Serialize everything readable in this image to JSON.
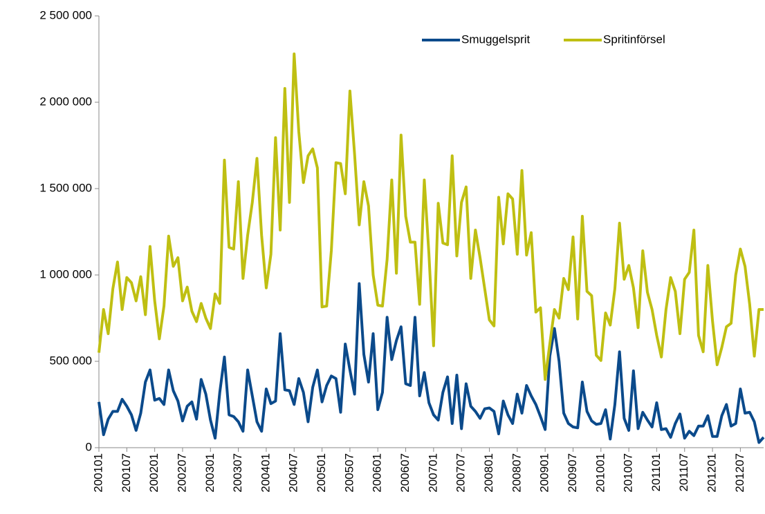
{
  "chart_data": {
    "type": "line",
    "categories": [
      "200101",
      null,
      null,
      null,
      null,
      null,
      "200107",
      null,
      null,
      null,
      null,
      null,
      "200201",
      null,
      null,
      null,
      null,
      null,
      "200207",
      null,
      null,
      null,
      null,
      null,
      "200301",
      null,
      null,
      null,
      null,
      null,
      "200307",
      null,
      null,
      null,
      null,
      null,
      "200401",
      null,
      null,
      null,
      null,
      null,
      "200407",
      null,
      null,
      null,
      null,
      null,
      "200501",
      null,
      null,
      null,
      null,
      null,
      "200507",
      null,
      null,
      null,
      null,
      null,
      "200601",
      null,
      null,
      null,
      null,
      null,
      "200607",
      null,
      null,
      null,
      null,
      null,
      "200701",
      null,
      null,
      null,
      null,
      null,
      "200707",
      null,
      null,
      null,
      null,
      null,
      "200801",
      null,
      null,
      null,
      null,
      null,
      "200807",
      null,
      null,
      null,
      null,
      null,
      "200901",
      null,
      null,
      null,
      null,
      null,
      "200907",
      null,
      null,
      null,
      null,
      null,
      "201001",
      null,
      null,
      null,
      null,
      null,
      "201007",
      null,
      null,
      null,
      null,
      null,
      "201101",
      null,
      null,
      null,
      null,
      null,
      "201107",
      null,
      null,
      null,
      null,
      null,
      "201201",
      null,
      null,
      null,
      null,
      null,
      "201207",
      null,
      null,
      null,
      null,
      null
    ],
    "series": [
      {
        "name": "Smuggelsprit",
        "color": "#0b4a8b",
        "values": [
          265000,
          75000,
          165000,
          210000,
          210000,
          280000,
          240000,
          190000,
          100000,
          200000,
          380000,
          450000,
          275000,
          285000,
          250000,
          450000,
          330000,
          270000,
          155000,
          240000,
          265000,
          165000,
          395000,
          310000,
          160000,
          55000,
          320000,
          525000,
          190000,
          180000,
          150000,
          95000,
          450000,
          300000,
          150000,
          95000,
          340000,
          255000,
          270000,
          660000,
          335000,
          330000,
          250000,
          400000,
          320000,
          150000,
          350000,
          450000,
          265000,
          360000,
          415000,
          400000,
          205000,
          600000,
          450000,
          310000,
          950000,
          540000,
          380000,
          660000,
          220000,
          320000,
          755000,
          510000,
          620000,
          700000,
          370000,
          360000,
          755000,
          300000,
          435000,
          260000,
          190000,
          160000,
          320000,
          410000,
          140000,
          420000,
          110000,
          370000,
          240000,
          210000,
          170000,
          225000,
          230000,
          210000,
          80000,
          270000,
          190000,
          140000,
          310000,
          200000,
          360000,
          300000,
          250000,
          180000,
          105000,
          530000,
          690000,
          500000,
          200000,
          140000,
          120000,
          115000,
          380000,
          210000,
          155000,
          135000,
          140000,
          220000,
          50000,
          250000,
          555000,
          170000,
          100000,
          445000,
          110000,
          205000,
          160000,
          120000,
          260000,
          105000,
          110000,
          60000,
          140000,
          195000,
          55000,
          95000,
          70000,
          125000,
          125000,
          185000,
          65000,
          65000,
          185000,
          250000,
          125000,
          140000,
          340000,
          200000,
          205000,
          150000,
          30000,
          60000
        ]
      },
      {
        "name": "Spritinförsel",
        "color": "#bfbf12",
        "values": [
          550000,
          800000,
          660000,
          920000,
          1075000,
          800000,
          985000,
          955000,
          850000,
          990000,
          770000,
          1165000,
          850000,
          630000,
          820000,
          1225000,
          1050000,
          1100000,
          850000,
          930000,
          790000,
          730000,
          835000,
          750000,
          690000,
          890000,
          835000,
          1665000,
          1160000,
          1150000,
          1540000,
          980000,
          1230000,
          1420000,
          1675000,
          1230000,
          925000,
          1120000,
          1795000,
          1260000,
          2080000,
          1420000,
          2280000,
          1830000,
          1535000,
          1690000,
          1730000,
          1620000,
          815000,
          820000,
          1140000,
          1650000,
          1645000,
          1470000,
          2065000,
          1700000,
          1290000,
          1540000,
          1400000,
          1000000,
          825000,
          820000,
          1090000,
          1550000,
          1010000,
          1810000,
          1340000,
          1190000,
          1190000,
          830000,
          1550000,
          1120000,
          590000,
          1415000,
          1185000,
          1175000,
          1690000,
          1110000,
          1420000,
          1510000,
          980000,
          1260000,
          1100000,
          920000,
          740000,
          705000,
          1450000,
          1180000,
          1470000,
          1440000,
          1120000,
          1605000,
          1115000,
          1245000,
          785000,
          810000,
          395000,
          600000,
          800000,
          750000,
          980000,
          915000,
          1220000,
          745000,
          1340000,
          905000,
          880000,
          535000,
          505000,
          780000,
          710000,
          920000,
          1300000,
          975000,
          1055000,
          925000,
          695000,
          1140000,
          900000,
          800000,
          650000,
          525000,
          800000,
          985000,
          905000,
          660000,
          975000,
          1015000,
          1260000,
          650000,
          555000,
          1055000,
          735000,
          480000,
          580000,
          700000,
          720000,
          1000000,
          1150000,
          1050000,
          830000,
          530000,
          800000,
          800000
        ]
      }
    ],
    "ylim": [
      0,
      2500000
    ],
    "yticks": [
      0,
      {
        "value": 500000,
        "label": "500 000"
      },
      {
        "value": 1000000,
        "label": "1 000 000"
      },
      {
        "value": 1500000,
        "label": "1 500 000"
      },
      {
        "value": 2000000,
        "label": "2 000 000"
      },
      {
        "value": 2500000,
        "label": "2 500 000"
      }
    ],
    "grid": false,
    "legend": "upper right"
  }
}
